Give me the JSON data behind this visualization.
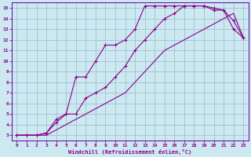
{
  "xlabel": "Windchill (Refroidissement éolien,°C)",
  "background_color": "#cce8f0",
  "grid_color": "#99bbcc",
  "line_color": "#880088",
  "spine_color": "#6600aa",
  "xlim": [
    -0.5,
    23.5
  ],
  "ylim": [
    2.5,
    15.5
  ],
  "yticks": [
    3,
    4,
    5,
    6,
    7,
    8,
    9,
    10,
    11,
    12,
    13,
    14,
    15
  ],
  "xticks": [
    0,
    1,
    2,
    3,
    4,
    5,
    6,
    7,
    8,
    9,
    10,
    11,
    12,
    13,
    14,
    15,
    16,
    17,
    18,
    19,
    20,
    21,
    22,
    23
  ],
  "line1_x": [
    0,
    1,
    2,
    3,
    4,
    5,
    6,
    7,
    8,
    9,
    10,
    11,
    12,
    13,
    14,
    15,
    16,
    17,
    18,
    19,
    20,
    21,
    22,
    23
  ],
  "line1_y": [
    3,
    3,
    3,
    3.2,
    4.2,
    5.0,
    8.5,
    8.5,
    10,
    11.5,
    11.5,
    12,
    13,
    15.2,
    15.2,
    15.2,
    15.2,
    15.2,
    15.2,
    15.2,
    14.8,
    14.8,
    13,
    12.2
  ],
  "line2_x": [
    0,
    1,
    2,
    3,
    4,
    5,
    6,
    7,
    8,
    9,
    10,
    11,
    12,
    13,
    14,
    15,
    16,
    17,
    18,
    19,
    20,
    21,
    22,
    23
  ],
  "line2_y": [
    3,
    3,
    3,
    3.2,
    4.5,
    5.0,
    5.0,
    6.5,
    7.0,
    7.5,
    8.5,
    9.5,
    11,
    12,
    13,
    14,
    14.5,
    15.2,
    15.2,
    15.2,
    15.0,
    14.8,
    13.8,
    12.2
  ],
  "line3_x": [
    0,
    1,
    2,
    3,
    4,
    5,
    6,
    7,
    8,
    9,
    10,
    11,
    12,
    13,
    14,
    15,
    16,
    17,
    18,
    19,
    20,
    21,
    22,
    23
  ],
  "line3_y": [
    3,
    3,
    3,
    3,
    3.5,
    4,
    4.5,
    5,
    5.5,
    6,
    6.5,
    7,
    8,
    9,
    10,
    11,
    11.5,
    12,
    12.5,
    13,
    13.5,
    14,
    14.5,
    12.2
  ]
}
